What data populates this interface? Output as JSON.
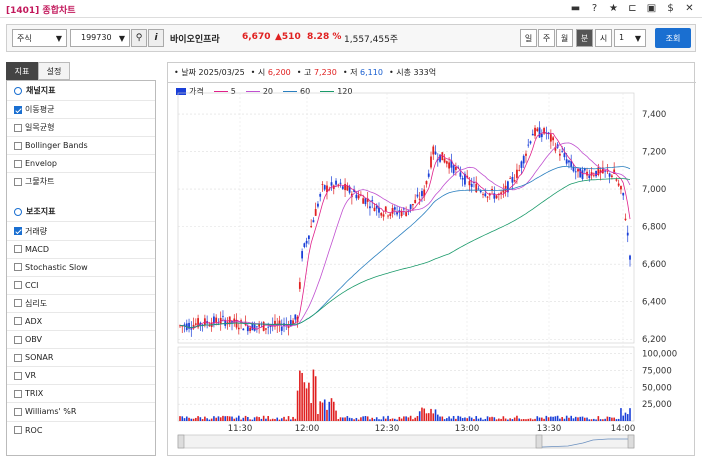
{
  "window": {
    "title": "[1401] 종합차트"
  },
  "titlebar_icons": [
    "chat-icon",
    "help-icon",
    "star-icon",
    "layout-icon",
    "window-icon",
    "dollar-icon",
    "close-icon"
  ],
  "toolbar": {
    "market_select": "주식",
    "code_input": "199730",
    "stock_name": "바이오인프라",
    "price": "6,670",
    "change": "▲510",
    "change_pct": "8.28 %",
    "volume": "1,557,455주",
    "periods": [
      "일",
      "주",
      "월",
      "분",
      "시"
    ],
    "active_period": "분",
    "interval_select": "1",
    "query_button": "조회"
  },
  "left_panel": {
    "tabs": [
      "지표",
      "설정"
    ],
    "channel_header": "채널지표",
    "channel_items": [
      {
        "label": "이동평균",
        "checked": true
      },
      {
        "label": "일목균형",
        "checked": false
      },
      {
        "label": "Bollinger Bands",
        "checked": false
      },
      {
        "label": "Envelop",
        "checked": false
      },
      {
        "label": "그물차트",
        "checked": false
      }
    ],
    "aux_header": "보조지표",
    "aux_items": [
      {
        "label": "거래량",
        "checked": true
      },
      {
        "label": "MACD",
        "checked": false
      },
      {
        "label": "Stochastic Slow",
        "checked": false
      },
      {
        "label": "CCI",
        "checked": false
      },
      {
        "label": "심리도",
        "checked": false
      },
      {
        "label": "ADX",
        "checked": false
      },
      {
        "label": "OBV",
        "checked": false
      },
      {
        "label": "SONAR",
        "checked": false
      },
      {
        "label": "VR",
        "checked": false
      },
      {
        "label": "TRIX",
        "checked": false
      },
      {
        "label": "Williams' %R",
        "checked": false
      },
      {
        "label": "ROC",
        "checked": false
      }
    ]
  },
  "info_bar": {
    "date_label": "날짜",
    "date": "2025/03/25",
    "open_label": "시",
    "open": "6,200",
    "high_label": "고",
    "high": "7,230",
    "low_label": "저",
    "low": "6,110",
    "mktcap_label": "시총",
    "mktcap": "333억"
  },
  "legend": [
    {
      "name": "가격",
      "color": "#1a3fd8"
    },
    {
      "name": "5",
      "color": "#e0208a"
    },
    {
      "name": "20",
      "color": "#c050d0"
    },
    {
      "name": "60",
      "color": "#2a7fbf"
    },
    {
      "name": "120",
      "color": "#1a9a6a"
    }
  ],
  "chart_data": {
    "type": "candlestick",
    "x_ticks": [
      "11:30",
      "12:00",
      "12:30",
      "13:00",
      "13:30",
      "14:00"
    ],
    "price_ticks": [
      "7,400",
      "7,200",
      "7,000",
      "6,800",
      "6,600",
      "6,400",
      "6,200"
    ],
    "price_ylim": [
      6180,
      7480
    ],
    "volume_ticks": [
      "100,000",
      "75,000",
      "50,000",
      "25,000"
    ],
    "volume_ylim": [
      0,
      110000
    ],
    "colors": {
      "up": "#e02020",
      "down": "#1a3fd8"
    }
  }
}
